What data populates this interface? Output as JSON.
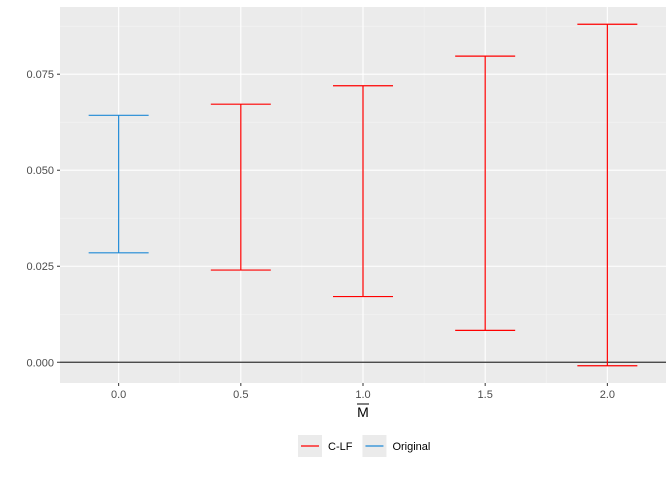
{
  "chart_data": {
    "type": "errorbar",
    "title": "",
    "xlabel": "M",
    "xlabel_overline": true,
    "ylabel": "",
    "x_ticks": [
      "0.0",
      "0.5",
      "1.0",
      "1.5",
      "2.0"
    ],
    "y_ticks": [
      "0.000",
      "0.025",
      "0.050",
      "0.075"
    ],
    "xlim": [
      -0.24,
      2.24
    ],
    "ylim": [
      -0.0054,
      0.0925
    ],
    "hline_y": 0,
    "grid": true,
    "legend_position": "bottom",
    "series": [
      {
        "name": "C-LF",
        "color": "#ff0000",
        "points": [
          {
            "x": 0.5,
            "ymin": 0.024,
            "ymax": 0.0672
          },
          {
            "x": 1.0,
            "ymin": 0.0171,
            "ymax": 0.072
          },
          {
            "x": 1.5,
            "ymin": 0.0083,
            "ymax": 0.0797
          },
          {
            "x": 2.0,
            "ymin": -0.0009,
            "ymax": 0.088
          }
        ]
      },
      {
        "name": "Original",
        "color": "#1f8ad6",
        "points": [
          {
            "x": 0.0,
            "ymin": 0.0285,
            "ymax": 0.0643
          }
        ]
      }
    ],
    "colors": {
      "panel_background": "#ebebeb",
      "grid_major": "#ffffff",
      "grid_minor": "#f4f4f4",
      "hline": "#333333",
      "tick_text": "#4d4d4d",
      "legend_key_background": "#ebebeb"
    }
  }
}
